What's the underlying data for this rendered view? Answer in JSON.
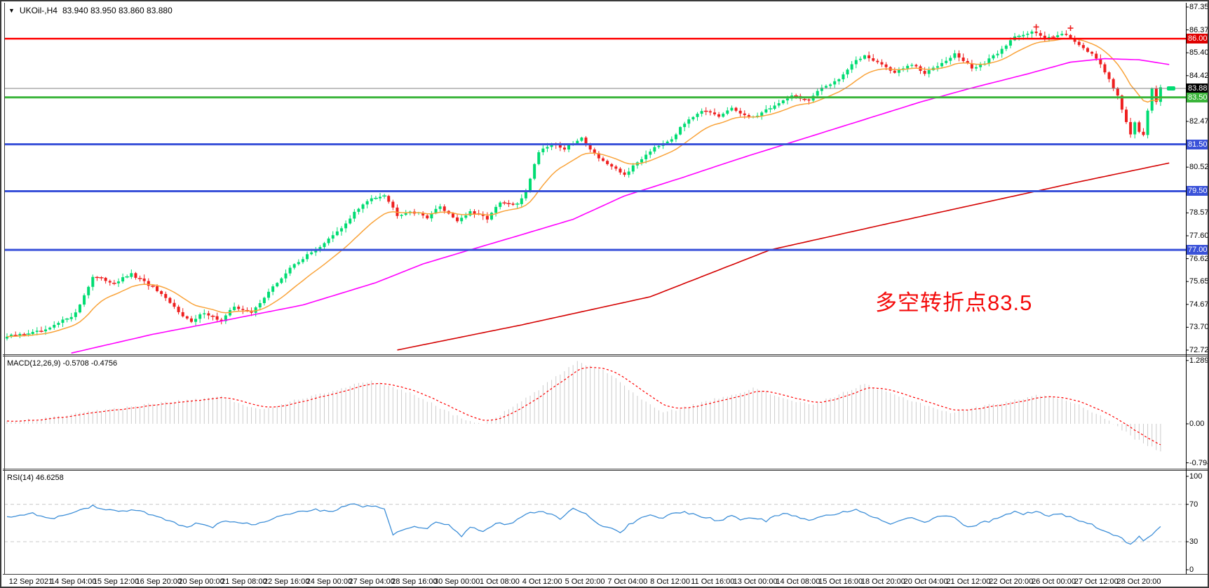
{
  "title": {
    "dropdown_icon": "▼",
    "symbol": "UKOil-,H4",
    "ohlc": "83.940 83.950 83.860 83.880"
  },
  "annotation": {
    "text": "多空转折点83.5",
    "color": "#F40B0B"
  },
  "colors": {
    "up": "#00DC72",
    "down": "#EE1F1F",
    "wick_up": "#00DC72",
    "wick_down": "#EE1F1F",
    "ma_fast": "#F9A33A",
    "ma_mid": "#FF00FF",
    "ma_slow": "#D40000",
    "macd_hist": "#CCCCCC",
    "macd_signal": "#FF0000",
    "rsi_line": "#3E8FD8",
    "level_dash": "#C8C8C8",
    "axis_line": "#3a3a3a",
    "current_price_line": "#808080",
    "line_red": "#FF0000",
    "line_green": "#3BB53B",
    "line_blue": "#3A52D9",
    "badge_red": "#E00000",
    "badge_black": "#000000",
    "badge_green": "#3BB53B",
    "badge_blue": "#3A52D9"
  },
  "chart_data": {
    "type": "candlestick",
    "symbol": "UKOil-",
    "timeframe": "H4",
    "bars": 270,
    "last_price": 83.88,
    "price_axis": {
      "min": 72.725,
      "max": 87.35,
      "ticks": [
        {
          "label": "87.350",
          "price": 87.35
        },
        {
          "label": "86.375",
          "price": 86.375
        },
        {
          "label": "85.400",
          "price": 85.4
        },
        {
          "label": "84.425",
          "price": 84.425
        },
        {
          "label": "82.475",
          "price": 82.475
        },
        {
          "label": "80.525",
          "price": 80.525
        },
        {
          "label": "78.575",
          "price": 78.575
        },
        {
          "label": "77.600",
          "price": 77.6
        },
        {
          "label": "76.625",
          "price": 76.625
        },
        {
          "label": "75.650",
          "price": 75.65
        },
        {
          "label": "74.675",
          "price": 74.675
        },
        {
          "label": "73.700",
          "price": 73.7
        },
        {
          "label": "72.725",
          "price": 72.725
        }
      ],
      "badges": [
        {
          "label": "86.000",
          "price": 86.0,
          "bg": "badge_red"
        },
        {
          "label": "83.880",
          "price": 83.88,
          "bg": "badge_black"
        },
        {
          "label": "83.500",
          "price": 83.5,
          "bg": "badge_green"
        },
        {
          "label": "81.500",
          "price": 81.5,
          "bg": "badge_blue"
        },
        {
          "label": "79.500",
          "price": 79.5,
          "bg": "badge_blue"
        },
        {
          "label": "77.000",
          "price": 77.0,
          "bg": "badge_blue"
        }
      ]
    },
    "horizontal_lines": [
      {
        "price": 86.0,
        "color": "line_red",
        "width": 2.5
      },
      {
        "price": 83.88,
        "color": "current_price_line",
        "width": 1
      },
      {
        "price": 83.5,
        "color": "line_green",
        "width": 3
      },
      {
        "price": 81.5,
        "color": "line_blue",
        "width": 3
      },
      {
        "price": 79.5,
        "color": "line_blue",
        "width": 3
      },
      {
        "price": 77.0,
        "color": "line_blue",
        "width": 3
      }
    ],
    "close_anchors": [
      [
        0,
        73.3
      ],
      [
        9,
        73.55
      ],
      [
        16,
        74.3
      ],
      [
        20,
        75.85
      ],
      [
        25,
        75.6
      ],
      [
        29,
        75.95
      ],
      [
        34,
        75.4
      ],
      [
        39,
        74.55
      ],
      [
        43,
        73.9
      ],
      [
        46,
        74.35
      ],
      [
        50,
        73.95
      ],
      [
        53,
        74.6
      ],
      [
        57,
        74.3
      ],
      [
        60,
        75.0
      ],
      [
        67,
        76.4
      ],
      [
        72,
        77.0
      ],
      [
        78,
        77.9
      ],
      [
        81,
        78.6
      ],
      [
        85,
        79.2
      ],
      [
        88,
        79.35
      ],
      [
        91,
        78.5
      ],
      [
        94,
        78.65
      ],
      [
        98,
        78.4
      ],
      [
        101,
        78.85
      ],
      [
        105,
        78.25
      ],
      [
        108,
        78.6
      ],
      [
        112,
        78.35
      ],
      [
        115,
        79.0
      ],
      [
        119,
        78.9
      ],
      [
        121,
        79.5
      ],
      [
        124,
        81.2
      ],
      [
        127,
        81.55
      ],
      [
        130,
        81.3
      ],
      [
        134,
        81.75
      ],
      [
        137,
        81.1
      ],
      [
        141,
        80.5
      ],
      [
        144,
        80.2
      ],
      [
        148,
        80.9
      ],
      [
        151,
        81.4
      ],
      [
        155,
        81.75
      ],
      [
        159,
        82.6
      ],
      [
        162,
        82.95
      ],
      [
        166,
        82.65
      ],
      [
        169,
        83.05
      ],
      [
        173,
        82.6
      ],
      [
        176,
        82.85
      ],
      [
        180,
        83.25
      ],
      [
        183,
        83.6
      ],
      [
        187,
        83.35
      ],
      [
        190,
        83.9
      ],
      [
        194,
        84.3
      ],
      [
        197,
        84.9
      ],
      [
        200,
        85.3
      ],
      [
        204,
        84.9
      ],
      [
        207,
        84.55
      ],
      [
        211,
        84.9
      ],
      [
        214,
        84.5
      ],
      [
        218,
        85.0
      ],
      [
        221,
        85.35
      ],
      [
        225,
        84.75
      ],
      [
        228,
        84.95
      ],
      [
        232,
        85.55
      ],
      [
        235,
        86.1
      ],
      [
        239,
        86.3
      ],
      [
        242,
        86.0
      ],
      [
        246,
        86.25
      ],
      [
        249,
        85.9
      ],
      [
        253,
        85.35
      ],
      [
        256,
        84.6
      ],
      [
        259,
        83.6
      ],
      [
        261,
        82.4
      ],
      [
        262,
        81.9
      ],
      [
        263,
        82.45
      ],
      [
        264,
        82.05
      ],
      [
        265,
        81.95
      ],
      [
        266,
        82.9
      ],
      [
        267,
        83.9
      ],
      [
        268,
        83.3
      ],
      [
        269,
        83.88
      ]
    ],
    "ma_mid_anchors": [
      [
        15,
        72.6
      ],
      [
        34,
        73.4
      ],
      [
        51,
        74.0
      ],
      [
        69,
        74.65
      ],
      [
        86,
        75.6
      ],
      [
        97,
        76.4
      ],
      [
        108,
        77.0
      ],
      [
        121,
        77.7
      ],
      [
        132,
        78.3
      ],
      [
        144,
        79.3
      ],
      [
        157,
        80.05
      ],
      [
        171,
        80.9
      ],
      [
        185,
        81.7
      ],
      [
        199,
        82.5
      ],
      [
        213,
        83.3
      ],
      [
        225,
        83.9
      ],
      [
        238,
        84.5
      ],
      [
        248,
        85.0
      ],
      [
        256,
        85.15
      ],
      [
        264,
        85.1
      ],
      [
        271,
        84.9
      ]
    ],
    "ma_slow_anchors": [
      [
        91,
        72.73
      ],
      [
        120,
        73.8
      ],
      [
        150,
        75.0
      ],
      [
        178,
        77.0
      ],
      [
        205,
        78.1
      ],
      [
        230,
        79.1
      ],
      [
        250,
        79.9
      ],
      [
        271,
        80.7
      ]
    ],
    "doji_marks": [
      [
        240,
        86.5
      ],
      [
        248,
        86.45
      ]
    ],
    "x_labels": [
      "12 Sep 2021",
      "14 Sep 04:00",
      "15 Sep 12:00",
      "16 Sep 20:00",
      "20 Sep 00:00",
      "21 Sep 08:00",
      "22 Sep 16:00",
      "24 Sep 00:00",
      "27 Sep 04:00",
      "28 Sep 16:00",
      "30 Sep 00:00",
      "1 Oct 08:00",
      "4 Oct 12:00",
      "5 Oct 20:00",
      "7 Oct 04:00",
      "8 Oct 12:00",
      "11 Oct 16:00",
      "13 Oct 00:00",
      "14 Oct 08:00",
      "15 Oct 16:00",
      "18 Oct 20:00",
      "20 Oct 04:00",
      "21 Oct 12:00",
      "22 Oct 20:00",
      "26 Oct 00:00",
      "27 Oct 12:00",
      "28 Oct 20:00"
    ],
    "macd": {
      "label": "MACD(12,26,9)",
      "values": "-0.5708 -0.4756",
      "axis_labels": [
        {
          "label": "1.2891",
          "v": 1.2891
        },
        {
          "label": "0.00",
          "v": 0
        },
        {
          "label": "-0.7941",
          "v": -0.7941
        }
      ],
      "anchors": [
        [
          0,
          0.05
        ],
        [
          10,
          0.12
        ],
        [
          20,
          0.25
        ],
        [
          35,
          0.42
        ],
        [
          50,
          0.55
        ],
        [
          59,
          0.28
        ],
        [
          70,
          0.55
        ],
        [
          85,
          0.88
        ],
        [
          95,
          0.6
        ],
        [
          105,
          0.15
        ],
        [
          111,
          -0.02
        ],
        [
          120,
          0.45
        ],
        [
          133,
          1.27
        ],
        [
          140,
          1.05
        ],
        [
          148,
          0.5
        ],
        [
          153,
          0.22
        ],
        [
          163,
          0.45
        ],
        [
          174,
          0.72
        ],
        [
          182,
          0.5
        ],
        [
          188,
          0.38
        ],
        [
          194,
          0.6
        ],
        [
          200,
          0.8
        ],
        [
          210,
          0.5
        ],
        [
          220,
          0.22
        ],
        [
          230,
          0.4
        ],
        [
          242,
          0.6
        ],
        [
          250,
          0.4
        ],
        [
          258,
          0.0
        ],
        [
          263,
          -0.3
        ],
        [
          269,
          -0.571
        ]
      ]
    },
    "rsi": {
      "label": "RSI(14)",
      "value": "46.6258",
      "levels": [
        {
          "label": "100",
          "v": 100,
          "dashed": false
        },
        {
          "label": "70",
          "v": 70,
          "dashed": true
        },
        {
          "label": "30",
          "v": 30,
          "dashed": true
        },
        {
          "label": "0",
          "v": 0,
          "dashed": false
        }
      ],
      "anchors": [
        [
          0,
          57
        ],
        [
          6,
          60
        ],
        [
          11,
          55
        ],
        [
          16,
          63
        ],
        [
          20,
          68
        ],
        [
          23,
          64
        ],
        [
          27,
          62
        ],
        [
          30,
          64
        ],
        [
          34,
          58
        ],
        [
          38,
          52
        ],
        [
          42,
          45
        ],
        [
          44,
          50
        ],
        [
          48,
          46
        ],
        [
          51,
          53
        ],
        [
          55,
          50
        ],
        [
          58,
          48
        ],
        [
          62,
          55
        ],
        [
          65,
          60
        ],
        [
          69,
          62
        ],
        [
          72,
          64
        ],
        [
          76,
          63
        ],
        [
          80,
          71
        ],
        [
          83,
          67
        ],
        [
          85,
          69
        ],
        [
          88,
          66
        ],
        [
          90,
          38
        ],
        [
          93,
          43
        ],
        [
          95,
          47
        ],
        [
          98,
          44
        ],
        [
          100,
          52
        ],
        [
          103,
          48
        ],
        [
          106,
          35
        ],
        [
          108,
          46
        ],
        [
          111,
          42
        ],
        [
          114,
          50
        ],
        [
          116,
          48
        ],
        [
          119,
          53
        ],
        [
          121,
          60
        ],
        [
          124,
          63
        ],
        [
          127,
          60
        ],
        [
          129,
          55
        ],
        [
          132,
          65
        ],
        [
          135,
          60
        ],
        [
          137,
          52
        ],
        [
          140,
          45
        ],
        [
          143,
          40
        ],
        [
          145,
          48
        ],
        [
          148,
          55
        ],
        [
          150,
          58
        ],
        [
          153,
          55
        ],
        [
          155,
          60
        ],
        [
          158,
          62
        ],
        [
          161,
          58
        ],
        [
          164,
          55
        ],
        [
          166,
          52
        ],
        [
          169,
          58
        ],
        [
          171,
          54
        ],
        [
          174,
          56
        ],
        [
          177,
          52
        ],
        [
          179,
          58
        ],
        [
          182,
          60
        ],
        [
          185,
          56
        ],
        [
          187,
          53
        ],
        [
          190,
          58
        ],
        [
          193,
          60
        ],
        [
          195,
          62
        ],
        [
          198,
          64
        ],
        [
          200,
          60
        ],
        [
          203,
          55
        ],
        [
          206,
          48
        ],
        [
          208,
          52
        ],
        [
          211,
          56
        ],
        [
          214,
          50
        ],
        [
          216,
          55
        ],
        [
          219,
          58
        ],
        [
          221,
          55
        ],
        [
          224,
          45
        ],
        [
          227,
          50
        ],
        [
          229,
          52
        ],
        [
          232,
          58
        ],
        [
          235,
          62
        ],
        [
          237,
          60
        ],
        [
          240,
          62
        ],
        [
          243,
          58
        ],
        [
          245,
          60
        ],
        [
          248,
          57
        ],
        [
          250,
          52
        ],
        [
          253,
          48
        ],
        [
          255,
          44
        ],
        [
          258,
          38
        ],
        [
          260,
          33
        ],
        [
          262,
          27
        ],
        [
          264,
          35
        ],
        [
          265,
          32
        ],
        [
          267,
          38
        ],
        [
          269,
          46.6
        ]
      ]
    }
  }
}
